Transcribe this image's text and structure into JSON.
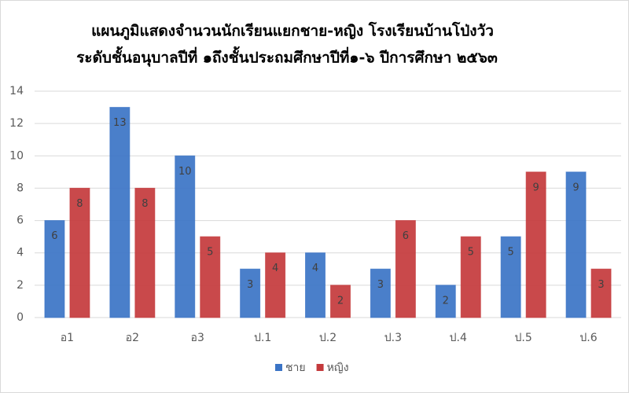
{
  "chart_data": {
    "type": "bar",
    "title": "แผนภูมิแสดงจำนวนนักเรียนแยกชาย-หญิง โรงเรียนบ้านโป่งวัว",
    "subtitle": "ระดับชั้นอนุบาลปีที่ ๑ถึงชั้นประถมศึกษาปีที่๑-๖ ปีการศึกษา ๒๕๖๓",
    "categories": [
      "อ1",
      "อ2",
      "อ3",
      "ป.1",
      "ป.2",
      "ป.3",
      "ป.4",
      "ป.5",
      "ป.6"
    ],
    "series": [
      {
        "name": "ชาย",
        "color": "#3b74c6",
        "values": [
          6,
          13,
          10,
          3,
          4,
          3,
          2,
          5,
          9
        ]
      },
      {
        "name": "หญิง",
        "color": "#c43a3c",
        "values": [
          8,
          8,
          5,
          4,
          2,
          6,
          5,
          9,
          3
        ]
      }
    ],
    "ylim": [
      0,
      14
    ],
    "yticks": [
      0,
      2,
      4,
      6,
      8,
      10,
      12,
      14
    ],
    "grid": true,
    "legend": "bottom"
  }
}
